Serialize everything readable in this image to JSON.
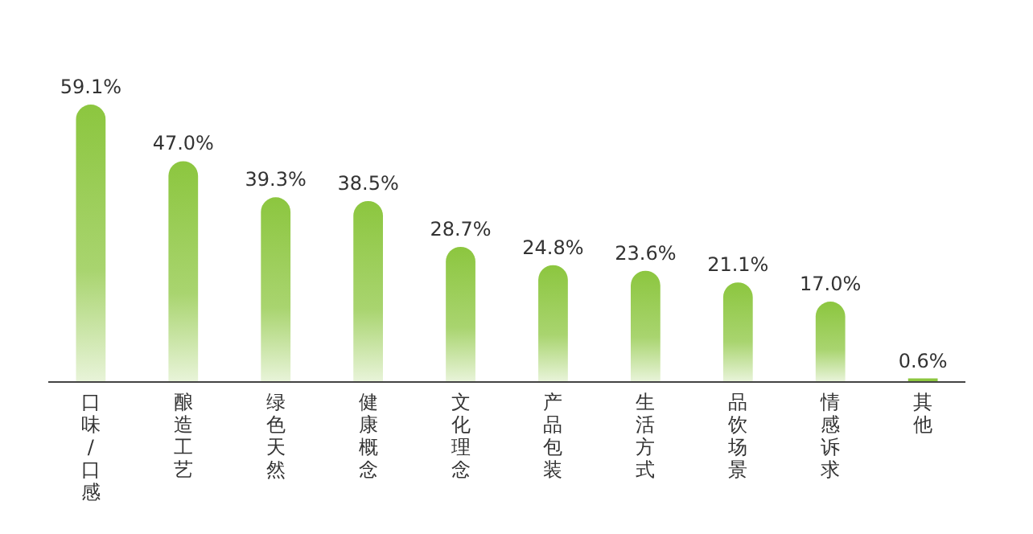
{
  "chart_data": {
    "type": "bar",
    "categories": [
      "口味/口感",
      "酿造工艺",
      "绿色天然",
      "健康概念",
      "文化理念",
      "产品包装",
      "生活方式",
      "品饮场景",
      "情感诉求",
      "其他"
    ],
    "values": [
      59.1,
      47.0,
      39.3,
      38.5,
      28.7,
      24.8,
      23.6,
      21.1,
      17.0,
      0.6
    ],
    "value_labels": [
      "59.1%",
      "47.0%",
      "39.3%",
      "38.5%",
      "28.7%",
      "24.8%",
      "23.6%",
      "21.1%",
      "17.0%",
      "0.6%"
    ],
    "color": "#8cc63f"
  }
}
